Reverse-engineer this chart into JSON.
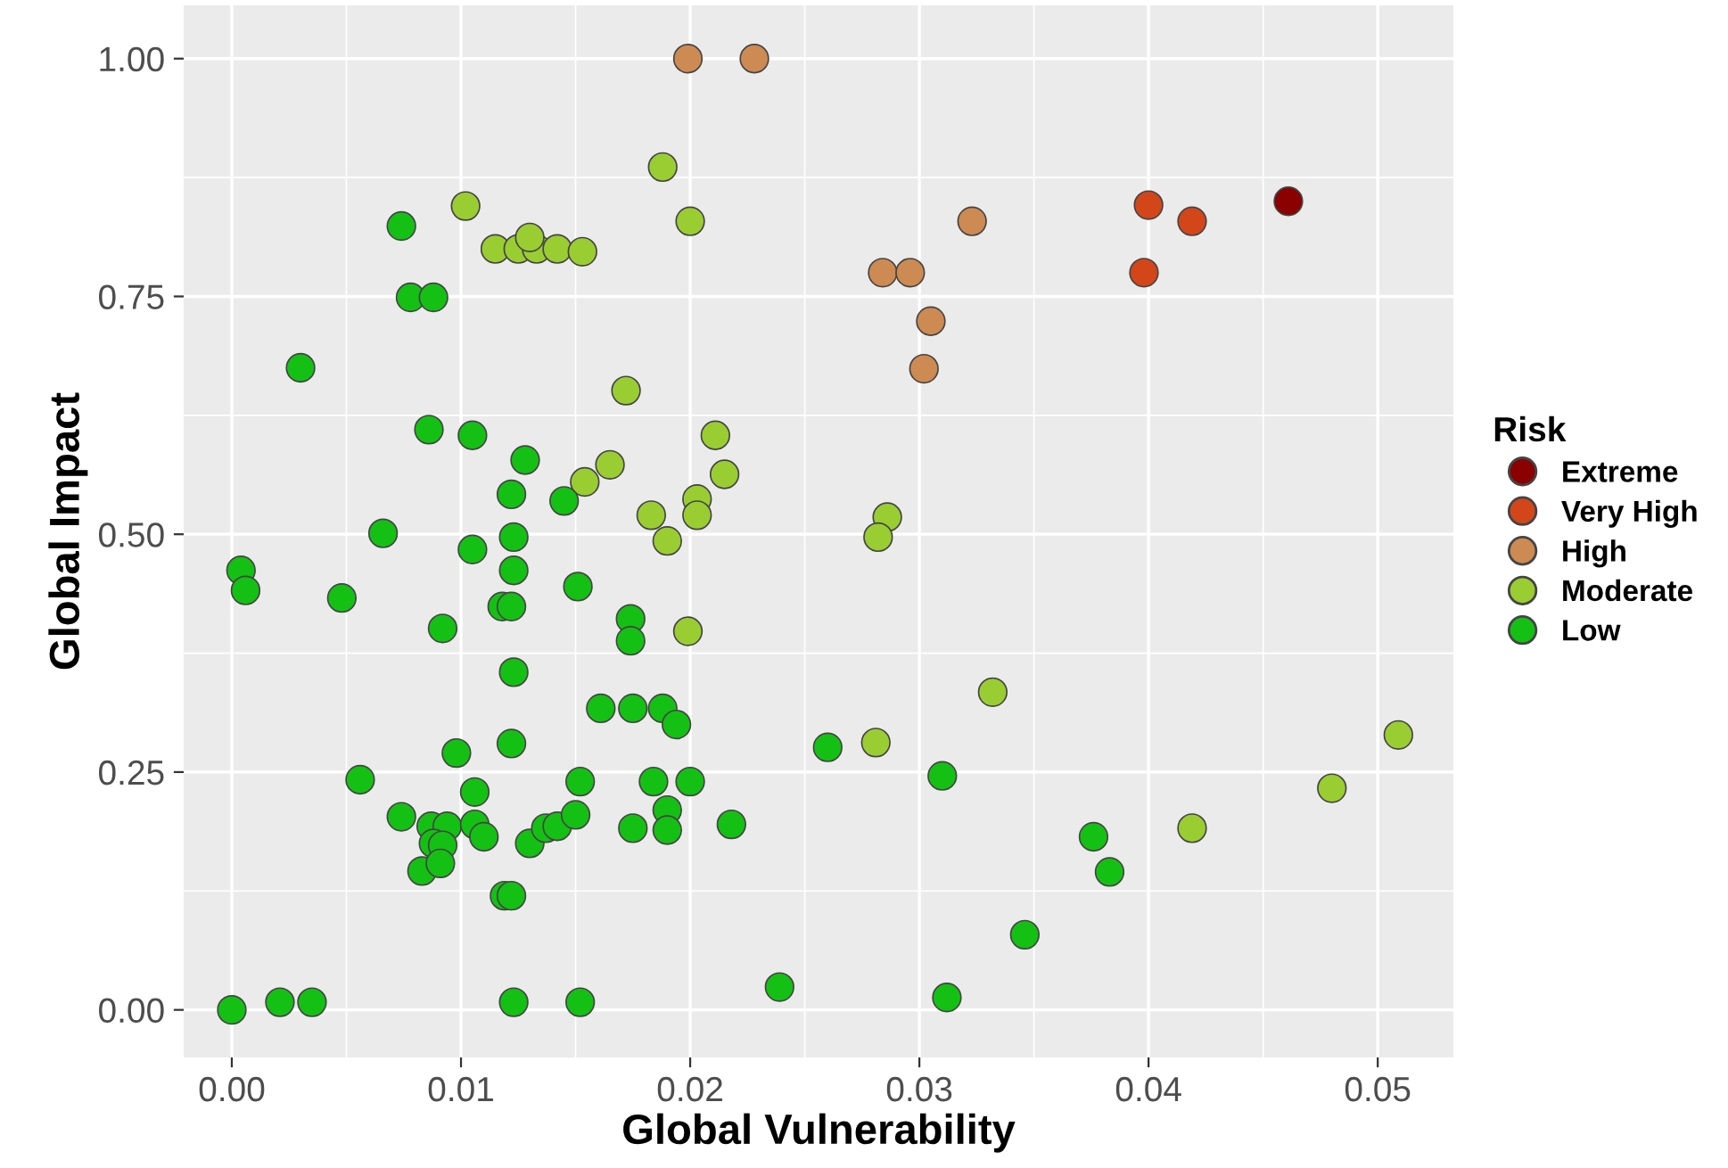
{
  "chart_data": {
    "type": "scatter",
    "xlabel": "Global Vulnerability",
    "ylabel": "Global Impact",
    "legend_title": "Risk",
    "legend": "right",
    "grid": true,
    "marker": "circle",
    "xlim": [
      -0.0021,
      0.0533
    ],
    "ylim": [
      -0.05,
      1.056
    ],
    "xticks": [
      {
        "value": 0,
        "label": "0.00"
      },
      {
        "value": 0.01,
        "label": "0.01"
      },
      {
        "value": 0.02,
        "label": "0.02"
      },
      {
        "value": 0.03,
        "label": "0.03"
      },
      {
        "value": 0.04,
        "label": "0.04"
      },
      {
        "value": 0.05,
        "label": "0.05"
      }
    ],
    "yticks": [
      {
        "value": 0,
        "label": "0.00"
      },
      {
        "value": 0.25,
        "label": "0.25"
      },
      {
        "value": 0.5,
        "label": "0.50"
      },
      {
        "value": 0.75,
        "label": "0.75"
      },
      {
        "value": 1,
        "label": "1.00"
      }
    ],
    "series": [
      {
        "name": "Extreme",
        "color": "#8b0000",
        "x": [
          0.0461
        ],
        "values": [
          0.85
        ]
      },
      {
        "name": "Very High",
        "color": "#d2461a",
        "x": [
          0.04,
          0.0419,
          0.0398
        ],
        "values": [
          0.846,
          0.829,
          0.775
        ]
      },
      {
        "name": "High",
        "color": "#cd8a52",
        "x": [
          0.0199,
          0.0228,
          0.0323,
          0.0284,
          0.0296,
          0.0305,
          0.0302
        ],
        "values": [
          1.0,
          1.0,
          0.829,
          0.775,
          0.775,
          0.724,
          0.674
        ]
      },
      {
        "name": "Moderate",
        "color": "#9acd32",
        "x": [
          0.0188,
          0.0102,
          0.02,
          0.0115,
          0.0125,
          0.0133,
          0.0142,
          0.0153,
          0.0172,
          0.0211,
          0.0165,
          0.0154,
          0.0215,
          0.0203,
          0.0203,
          0.0183,
          0.019,
          0.0199,
          0.0286,
          0.0282,
          0.0332,
          0.0281,
          0.0509,
          0.048,
          0.0419,
          0.013
        ],
        "values": [
          0.886,
          0.845,
          0.829,
          0.8,
          0.8,
          0.8,
          0.8,
          0.797,
          0.651,
          0.604,
          0.573,
          0.555,
          0.563,
          0.537,
          0.52,
          0.52,
          0.493,
          0.398,
          0.518,
          0.497,
          0.334,
          0.281,
          0.289,
          0.233,
          0.191,
          0.812
        ]
      },
      {
        "name": "Low",
        "color": "#14c014",
        "x": [
          0.026,
          0.031,
          0.0376,
          0.0383,
          0.0346,
          0.0239,
          0.0312,
          0.0074,
          0.0078,
          0.0088,
          0.003,
          0.0086,
          0.0105,
          0.0128,
          0.0122,
          0.0145,
          0.0066,
          0.0105,
          0.0123,
          0.0123,
          0.0004,
          0.0006,
          0.0048,
          0.0151,
          0.0118,
          0.0122,
          0.0092,
          0.0174,
          0.0174,
          0.0123,
          0.0161,
          0.0175,
          0.0188,
          0.0194,
          0.0098,
          0.0122,
          0.0056,
          0.0152,
          0.0184,
          0.02,
          0.0106,
          0.0074,
          0.0087,
          0.0094,
          0.0106,
          0.011,
          0.0088,
          0.0092,
          0.0083,
          0.0091,
          0.013,
          0.0137,
          0.0142,
          0.015,
          0.019,
          0.019,
          0.0175,
          0.0218,
          0.0119,
          0.0122,
          0.0,
          0.0021,
          0.0035,
          0.0123,
          0.0152
        ],
        "values": [
          0.276,
          0.246,
          0.182,
          0.145,
          0.079,
          0.024,
          0.013,
          0.824,
          0.749,
          0.749,
          0.675,
          0.61,
          0.604,
          0.578,
          0.542,
          0.535,
          0.501,
          0.484,
          0.497,
          0.462,
          0.462,
          0.441,
          0.433,
          0.445,
          0.424,
          0.424,
          0.401,
          0.411,
          0.388,
          0.355,
          0.317,
          0.317,
          0.317,
          0.3,
          0.27,
          0.28,
          0.242,
          0.24,
          0.24,
          0.24,
          0.229,
          0.203,
          0.193,
          0.193,
          0.195,
          0.182,
          0.175,
          0.173,
          0.146,
          0.154,
          0.175,
          0.191,
          0.193,
          0.205,
          0.21,
          0.189,
          0.191,
          0.195,
          0.12,
          0.12,
          0.0,
          0.008,
          0.008,
          0.008,
          0.008
        ]
      }
    ]
  }
}
